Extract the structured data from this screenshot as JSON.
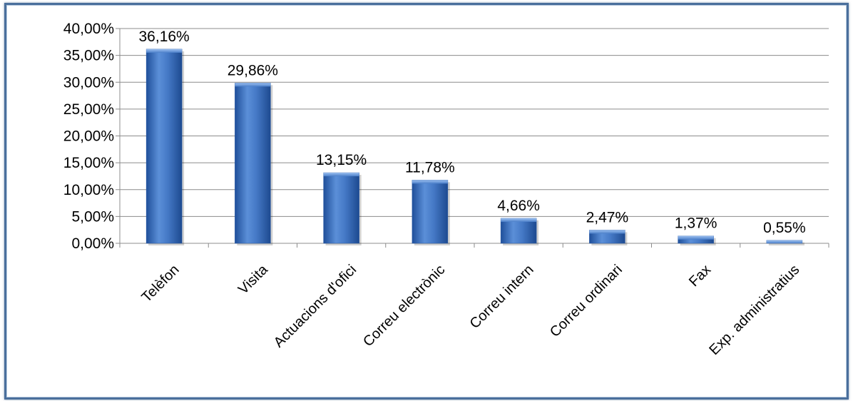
{
  "chart_data": {
    "type": "bar",
    "title": "",
    "xlabel": "",
    "ylabel": "",
    "categories": [
      "Telèfon",
      "Visita",
      "Actuacions d'ofici",
      "Correu electrònic",
      "Correu intern",
      "Correu ordinari",
      "Fax",
      "Exp. administratius"
    ],
    "values": [
      36.16,
      29.86,
      13.15,
      11.78,
      4.66,
      2.47,
      1.37,
      0.55
    ],
    "data_labels": [
      "36,16%",
      "29,86%",
      "13,15%",
      "11,78%",
      "4,66%",
      "2,47%",
      "1,37%",
      "0,55%"
    ],
    "ylim": [
      0,
      40
    ],
    "yticks": [
      0,
      5,
      10,
      15,
      20,
      25,
      30,
      35,
      40
    ],
    "ytick_labels": [
      "0,00%",
      "5,00%",
      "10,00%",
      "15,00%",
      "20,00%",
      "25,00%",
      "30,00%",
      "35,00%",
      "40,00%"
    ],
    "grid": true,
    "legend": "none",
    "bar_color": "#3f6fba"
  }
}
